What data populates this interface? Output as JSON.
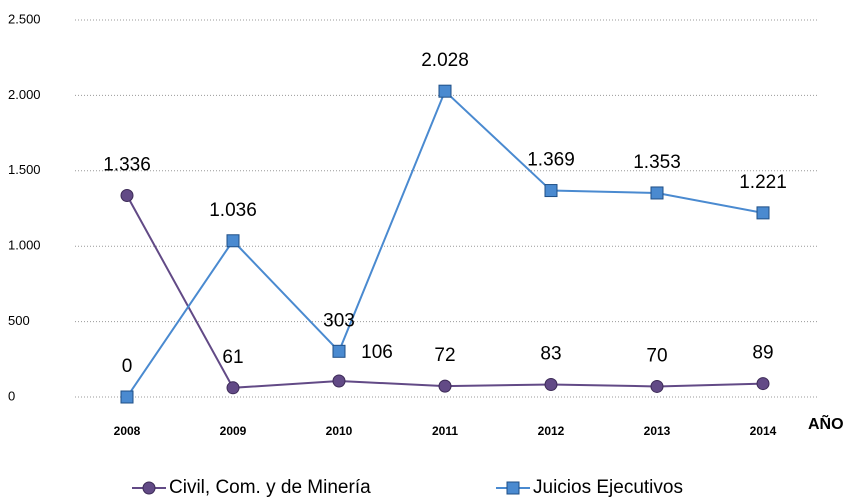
{
  "chart_data": {
    "type": "line",
    "x_label": "AÑO",
    "categories": [
      "2008",
      "2009",
      "2010",
      "2011",
      "2012",
      "2013",
      "2014"
    ],
    "series": [
      {
        "name": "Civil, Com. y de Minería",
        "color": "#624a86",
        "marker": "circle",
        "values": [
          1336,
          61,
          106,
          72,
          83,
          70,
          89
        ],
        "value_labels": [
          "1.336",
          "61",
          "106",
          "72",
          "83",
          "70",
          "89"
        ]
      },
      {
        "name": "Juicios Ejecutivos",
        "color": "#4a8ad0",
        "marker": "square",
        "values": [
          0,
          1036,
          303,
          2028,
          1369,
          1353,
          1221
        ],
        "value_labels": [
          "0",
          "1.036",
          "303",
          "2.028",
          "1.369",
          "1.353",
          "1.221"
        ]
      }
    ],
    "ylim": [
      0,
      2500
    ],
    "yticks": [
      0,
      500,
      {
        "value": 1000,
        "label": "1.000"
      },
      {
        "value": 1500,
        "label": "1.500"
      },
      {
        "value": 2000,
        "label": "2.000"
      },
      {
        "value": 2500,
        "label": "2.500"
      }
    ],
    "grid": true
  }
}
